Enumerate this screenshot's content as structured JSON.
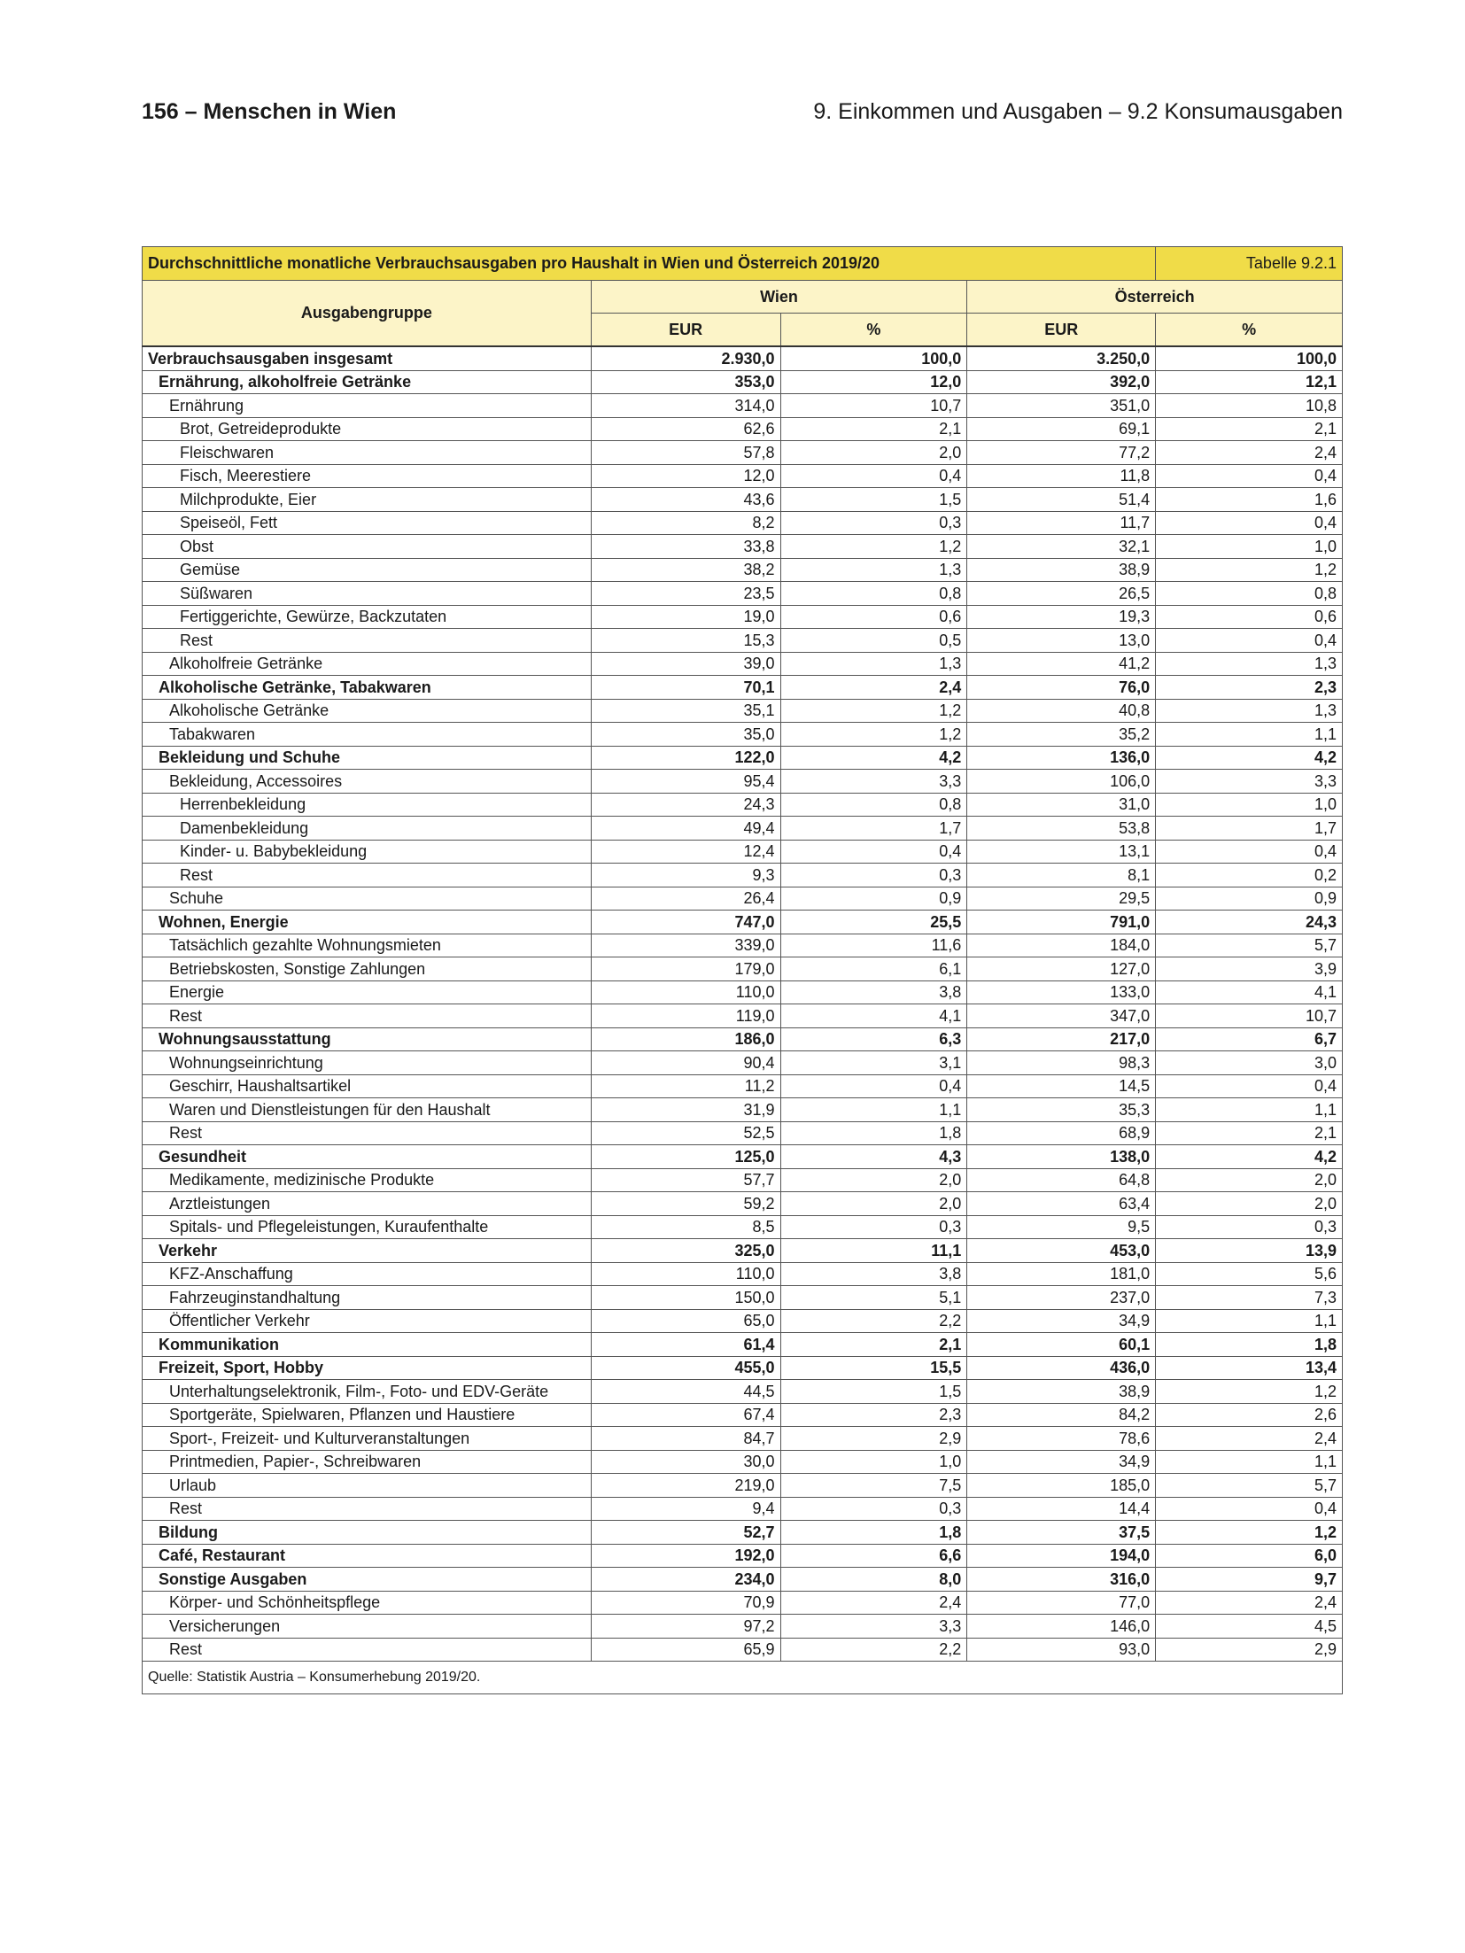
{
  "page": {
    "left": "156 – Menschen in Wien",
    "right": "9. Einkommen und Ausgaben – 9.2 Konsumausgaben"
  },
  "table": {
    "title": "Durchschnittliche monatliche Verbrauchsausgaben pro Haushalt in Wien und Österreich 2019/20",
    "number": "Tabelle 9.2.1",
    "col_group": "Ausgabengruppe",
    "wien": "Wien",
    "oesterreich": "Österreich",
    "eur": "EUR",
    "pct": "%",
    "rows": [
      [
        "Verbrauchsausgaben insgesamt",
        0,
        "2.930,0",
        "100,0",
        "3.250,0",
        "100,0"
      ],
      [
        "Ernährung, alkoholfreie Getränke",
        1,
        "353,0",
        "12,0",
        "392,0",
        "12,1"
      ],
      [
        "Ernährung",
        2,
        "314,0",
        "10,7",
        "351,0",
        "10,8"
      ],
      [
        "Brot, Getreideprodukte",
        3,
        "62,6",
        "2,1",
        "69,1",
        "2,1"
      ],
      [
        "Fleischwaren",
        3,
        "57,8",
        "2,0",
        "77,2",
        "2,4"
      ],
      [
        "Fisch, Meerestiere",
        3,
        "12,0",
        "0,4",
        "11,8",
        "0,4"
      ],
      [
        "Milchprodukte, Eier",
        3,
        "43,6",
        "1,5",
        "51,4",
        "1,6"
      ],
      [
        "Speiseöl, Fett",
        3,
        "8,2",
        "0,3",
        "11,7",
        "0,4"
      ],
      [
        "Obst",
        3,
        "33,8",
        "1,2",
        "32,1",
        "1,0"
      ],
      [
        "Gemüse",
        3,
        "38,2",
        "1,3",
        "38,9",
        "1,2"
      ],
      [
        "Süßwaren",
        3,
        "23,5",
        "0,8",
        "26,5",
        "0,8"
      ],
      [
        "Fertiggerichte, Gewürze, Backzutaten",
        3,
        "19,0",
        "0,6",
        "19,3",
        "0,6"
      ],
      [
        "Rest",
        3,
        "15,3",
        "0,5",
        "13,0",
        "0,4"
      ],
      [
        "Alkoholfreie Getränke",
        2,
        "39,0",
        "1,3",
        "41,2",
        "1,3"
      ],
      [
        "Alkoholische Getränke, Tabakwaren",
        1,
        "70,1",
        "2,4",
        "76,0",
        "2,3"
      ],
      [
        "Alkoholische Getränke",
        2,
        "35,1",
        "1,2",
        "40,8",
        "1,3"
      ],
      [
        "Tabakwaren",
        2,
        "35,0",
        "1,2",
        "35,2",
        "1,1"
      ],
      [
        "Bekleidung und Schuhe",
        1,
        "122,0",
        "4,2",
        "136,0",
        "4,2"
      ],
      [
        "Bekleidung, Accessoires",
        2,
        "95,4",
        "3,3",
        "106,0",
        "3,3"
      ],
      [
        "Herrenbekleidung",
        3,
        "24,3",
        "0,8",
        "31,0",
        "1,0"
      ],
      [
        "Damenbekleidung",
        3,
        "49,4",
        "1,7",
        "53,8",
        "1,7"
      ],
      [
        "Kinder- u. Babybekleidung",
        3,
        "12,4",
        "0,4",
        "13,1",
        "0,4"
      ],
      [
        "Rest",
        3,
        "9,3",
        "0,3",
        "8,1",
        "0,2"
      ],
      [
        "Schuhe",
        2,
        "26,4",
        "0,9",
        "29,5",
        "0,9"
      ],
      [
        "Wohnen, Energie",
        1,
        "747,0",
        "25,5",
        "791,0",
        "24,3"
      ],
      [
        "Tatsächlich gezahlte Wohnungsmieten",
        2,
        "339,0",
        "11,6",
        "184,0",
        "5,7"
      ],
      [
        "Betriebskosten, Sonstige Zahlungen",
        2,
        "179,0",
        "6,1",
        "127,0",
        "3,9"
      ],
      [
        "Energie",
        2,
        "110,0",
        "3,8",
        "133,0",
        "4,1"
      ],
      [
        "Rest",
        2,
        "119,0",
        "4,1",
        "347,0",
        "10,7"
      ],
      [
        "Wohnungsausstattung",
        1,
        "186,0",
        "6,3",
        "217,0",
        "6,7"
      ],
      [
        "Wohnungseinrichtung",
        2,
        "90,4",
        "3,1",
        "98,3",
        "3,0"
      ],
      [
        "Geschirr, Haushaltsartikel",
        2,
        "11,2",
        "0,4",
        "14,5",
        "0,4"
      ],
      [
        "Waren und Dienstleistungen für den Haushalt",
        2,
        "31,9",
        "1,1",
        "35,3",
        "1,1"
      ],
      [
        "Rest",
        2,
        "52,5",
        "1,8",
        "68,9",
        "2,1"
      ],
      [
        "Gesundheit",
        1,
        "125,0",
        "4,3",
        "138,0",
        "4,2"
      ],
      [
        "Medikamente, medizinische Produkte",
        2,
        "57,7",
        "2,0",
        "64,8",
        "2,0"
      ],
      [
        "Arztleistungen",
        2,
        "59,2",
        "2,0",
        "63,4",
        "2,0"
      ],
      [
        "Spitals- und Pflegeleistungen, Kuraufenthalte",
        2,
        "8,5",
        "0,3",
        "9,5",
        "0,3"
      ],
      [
        "Verkehr",
        1,
        "325,0",
        "11,1",
        "453,0",
        "13,9"
      ],
      [
        "KFZ-Anschaffung",
        2,
        "110,0",
        "3,8",
        "181,0",
        "5,6"
      ],
      [
        "Fahrzeuginstandhaltung",
        2,
        "150,0",
        "5,1",
        "237,0",
        "7,3"
      ],
      [
        "Öffentlicher Verkehr",
        2,
        "65,0",
        "2,2",
        "34,9",
        "1,1"
      ],
      [
        "Kommunikation",
        1,
        "61,4",
        "2,1",
        "60,1",
        "1,8"
      ],
      [
        "Freizeit, Sport, Hobby",
        1,
        "455,0",
        "15,5",
        "436,0",
        "13,4"
      ],
      [
        "Unterhaltungselektronik, Film-, Foto- und EDV-Geräte",
        2,
        "44,5",
        "1,5",
        "38,9",
        "1,2"
      ],
      [
        "Sportgeräte, Spielwaren, Pflanzen und Haustiere",
        2,
        "67,4",
        "2,3",
        "84,2",
        "2,6"
      ],
      [
        "Sport-, Freizeit- und Kulturveranstaltungen",
        2,
        "84,7",
        "2,9",
        "78,6",
        "2,4"
      ],
      [
        "Printmedien, Papier-, Schreibwaren",
        2,
        "30,0",
        "1,0",
        "34,9",
        "1,1"
      ],
      [
        "Urlaub",
        2,
        "219,0",
        "7,5",
        "185,0",
        "5,7"
      ],
      [
        "Rest",
        2,
        "9,4",
        "0,3",
        "14,4",
        "0,4"
      ],
      [
        "Bildung",
        1,
        "52,7",
        "1,8",
        "37,5",
        "1,2"
      ],
      [
        "Café, Restaurant",
        1,
        "192,0",
        "6,6",
        "194,0",
        "6,0"
      ],
      [
        "Sonstige Ausgaben",
        1,
        "234,0",
        "8,0",
        "316,0",
        "9,7"
      ],
      [
        "Körper- und Schönheitspflege",
        2,
        "70,9",
        "2,4",
        "77,0",
        "2,4"
      ],
      [
        "Versicherungen",
        2,
        "97,2",
        "3,3",
        "146,0",
        "4,5"
      ],
      [
        "Rest",
        2,
        "65,9",
        "2,2",
        "93,0",
        "2,9"
      ]
    ],
    "source": "Quelle: Statistik Austria – Konsumerhebung 2019/20."
  }
}
